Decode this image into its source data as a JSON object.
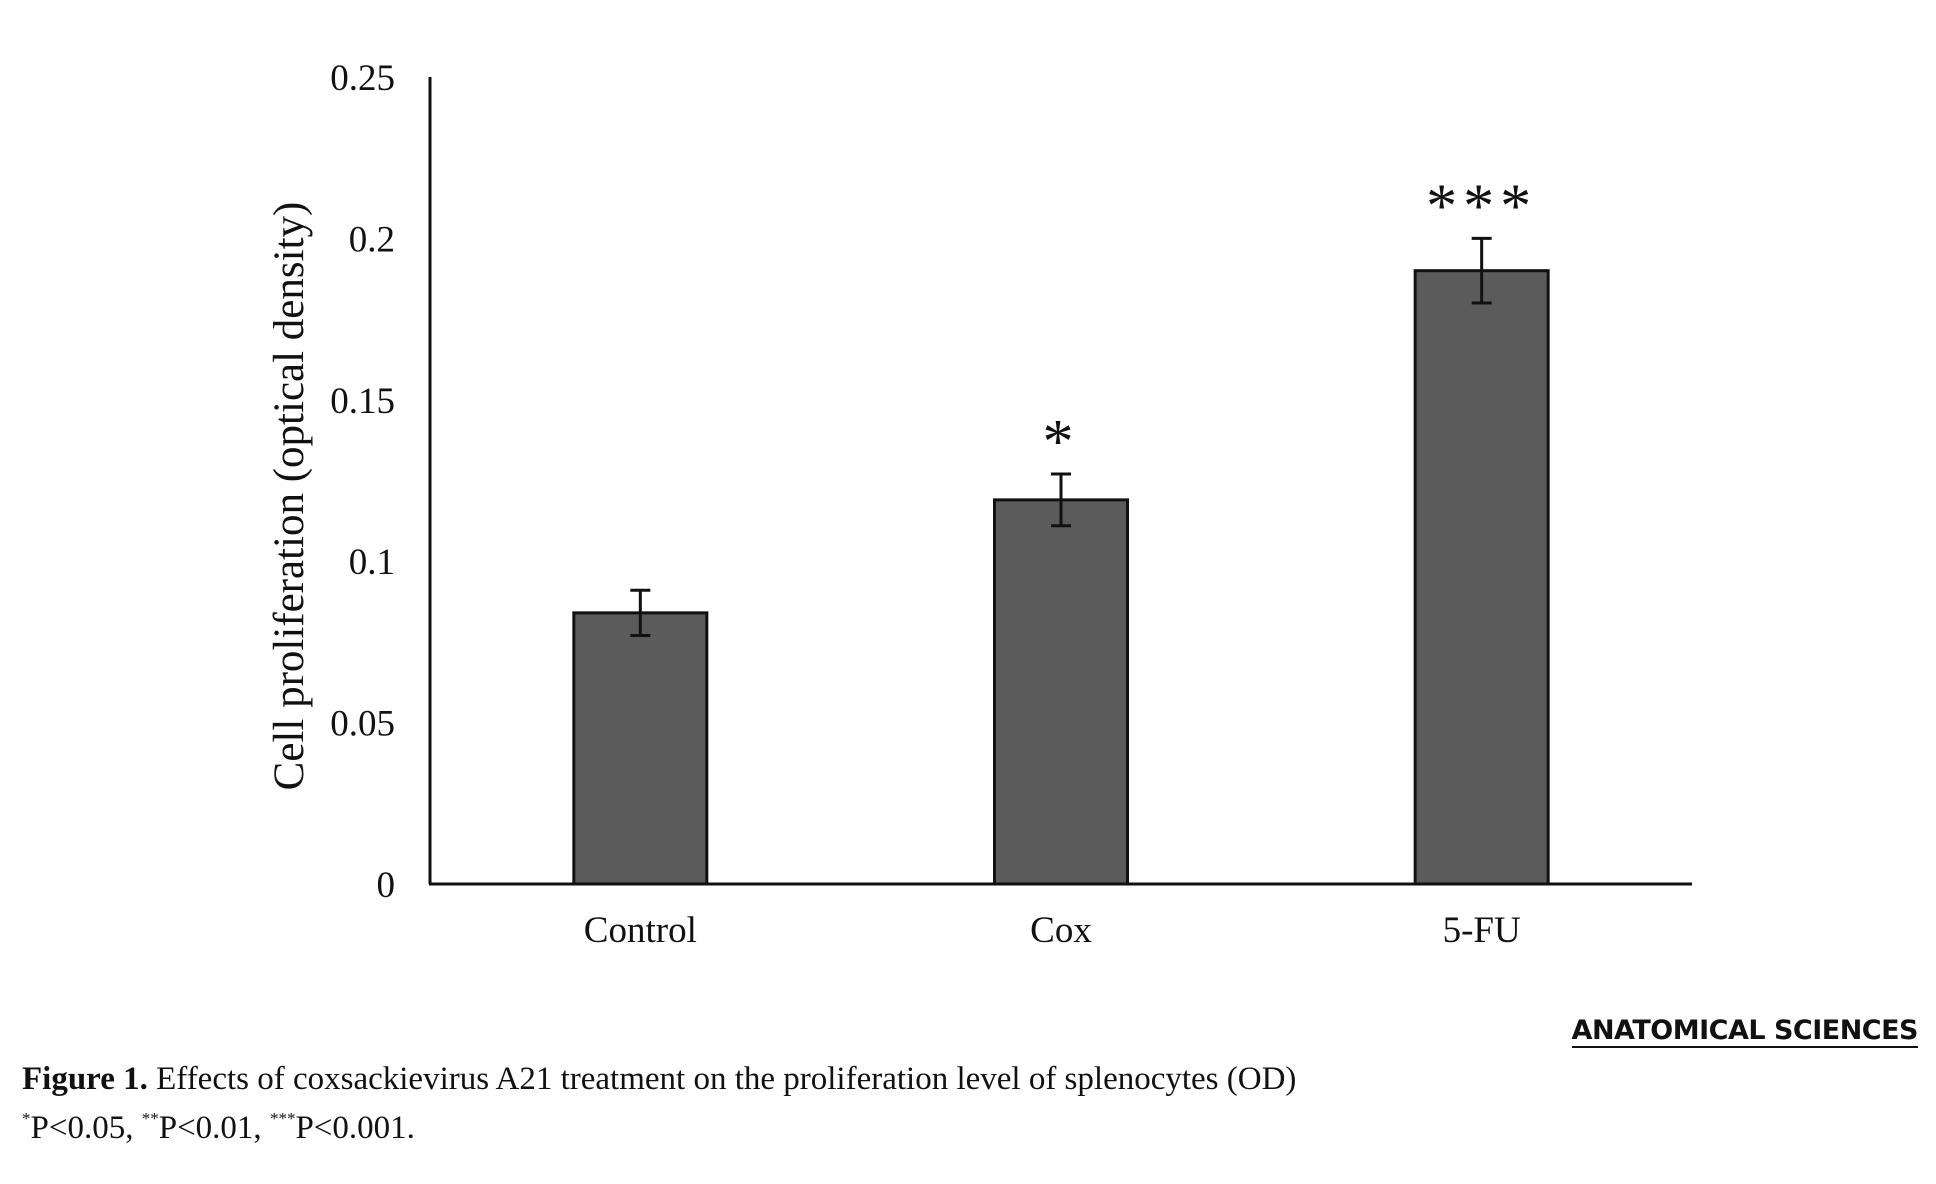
{
  "chart_data": {
    "type": "bar",
    "title": "",
    "xlabel": "",
    "ylabel": "Cell proliferation (optical density)",
    "categories": [
      "Control",
      "Cox",
      "5-FU"
    ],
    "values": [
      0.084,
      0.119,
      0.19
    ],
    "errors": [
      0.007,
      0.008,
      0.01
    ],
    "significance": [
      "",
      "*",
      "***"
    ],
    "ylim": [
      0,
      0.25
    ],
    "yticks": [
      0,
      0.05,
      0.1,
      0.15,
      0.2,
      0.25
    ],
    "ytick_labels": [
      "0",
      "0.05",
      "0.1",
      "0.15",
      "0.2",
      "0.25"
    ],
    "bar_color": "#5a5b5a",
    "grid": false,
    "legend": "none"
  },
  "publisher": "ANATOMICAL SCIENCES",
  "caption": {
    "label": "Figure 1.",
    "text": " Effects of coxsackievirus A21 treatment on the proliferation level of splenocytes (OD)"
  },
  "footnote": {
    "sup1": "*",
    "t1": "P<0.05, ",
    "sup2": "**",
    "t2": "P<0.01, ",
    "sup3": "***",
    "t3": "P<0.001."
  }
}
